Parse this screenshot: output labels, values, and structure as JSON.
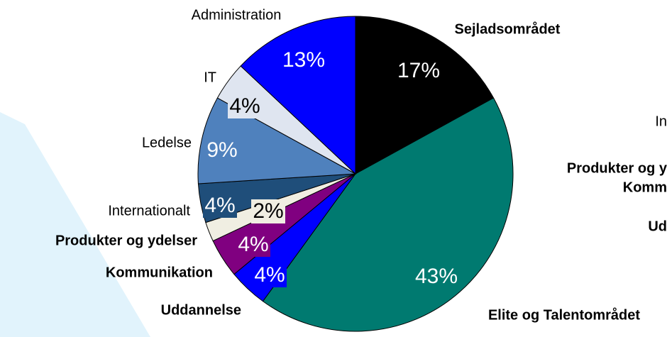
{
  "chart_data": {
    "type": "pie",
    "categories": [
      "Sejladsområdet",
      "Elite og Talentområdet",
      "Uddannelse",
      "Kommunikation",
      "Produkter og ydelser",
      "Internationalt",
      "Ledelse",
      "IT",
      "Administration"
    ],
    "values": [
      17,
      43,
      4,
      4,
      2,
      4,
      9,
      4,
      13
    ],
    "value_labels": [
      "17%",
      "43%",
      "4%",
      "4%",
      "2%",
      "4%",
      "9%",
      "4%",
      "13%"
    ],
    "colors": [
      "#000000",
      "#007a70",
      "#0000ff",
      "#800080",
      "#f0eee2",
      "#1f4e7a",
      "#4f81bd",
      "#dfe5f0",
      "#0000ff"
    ]
  },
  "background_labels": [
    "In",
    "Produkter og y",
    "Komm",
    "Ud"
  ]
}
